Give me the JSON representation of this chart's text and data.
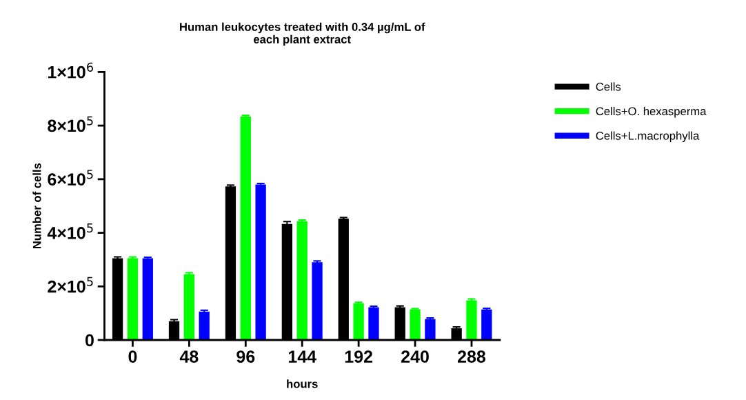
{
  "chart_data": {
    "type": "bar",
    "title": "Human leukocytes treated with 0.34 µg/mL of\neach plant extract",
    "xlabel": "hours",
    "ylabel": "Number of cells",
    "categories": [
      "0",
      "48",
      "96",
      "144",
      "192",
      "240",
      "288"
    ],
    "series": [
      {
        "name": "Cells",
        "color": "#000000",
        "values": [
          305000,
          70000,
          573000,
          433000,
          453000,
          122000,
          44000
        ],
        "errors": [
          5000,
          6000,
          5000,
          9000,
          4000,
          5000,
          5000
        ]
      },
      {
        "name": "Cells+O. hexasperma",
        "color": "#00ff00",
        "values": [
          305000,
          246000,
          834000,
          443000,
          137000,
          114000,
          148000
        ],
        "errors": [
          5000,
          5000,
          4000,
          5000,
          4000,
          3000,
          5000
        ]
      },
      {
        "name": "Cells+L.macrophylla",
        "color": "#0000ff",
        "values": [
          305000,
          106000,
          580000,
          290000,
          122000,
          78000,
          114000
        ],
        "errors": [
          4000,
          5000,
          4000,
          5000,
          4000,
          4000,
          4000
        ]
      }
    ],
    "ylim": [
      0,
      1000000
    ],
    "yticks": [
      0,
      {
        "value": 200000,
        "label": "2×10$^{5}$"
      },
      {
        "value": 400000,
        "label": "4×10$^{5}$"
      },
      {
        "value": 600000,
        "label": "6×10$^{5}$"
      },
      {
        "value": 800000,
        "label": "8×10$^{5}$"
      },
      {
        "value": 1000000,
        "label": "1×10$^{6}$"
      }
    ],
    "grid": false,
    "legend": "right"
  }
}
